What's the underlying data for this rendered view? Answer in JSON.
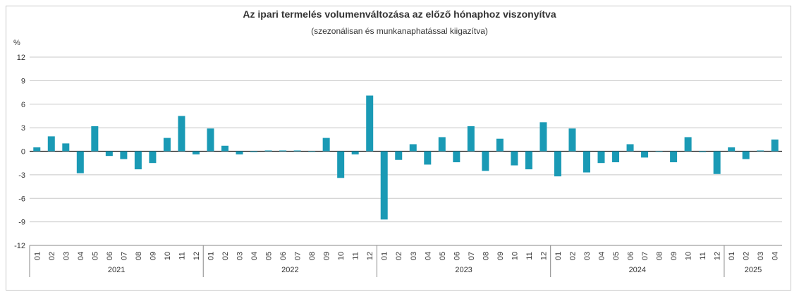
{
  "chart_data": {
    "type": "bar",
    "title": "Az ipari termelés volumenváltozása az előző hónaphoz viszonyítva",
    "subtitle": "(szezonálisan és munkanaphatással kiigazítva)",
    "ylabel": "%",
    "ylim": [
      -12,
      12
    ],
    "yticks": [
      12,
      9,
      6,
      3,
      0,
      -3,
      -6,
      -9,
      -12
    ],
    "grid": true,
    "bar_color": "#1a9ab5",
    "years": [
      {
        "label": "2021",
        "months": 12
      },
      {
        "label": "2022",
        "months": 12
      },
      {
        "label": "2023",
        "months": 12
      },
      {
        "label": "2024",
        "months": 12
      },
      {
        "label": "2025",
        "months": 4
      }
    ],
    "categories": [
      "01",
      "02",
      "03",
      "04",
      "05",
      "06",
      "07",
      "08",
      "09",
      "10",
      "11",
      "12",
      "01",
      "02",
      "03",
      "04",
      "05",
      "06",
      "07",
      "08",
      "09",
      "10",
      "11",
      "12",
      "01",
      "02",
      "03",
      "04",
      "05",
      "06",
      "07",
      "08",
      "09",
      "10",
      "11",
      "12",
      "01",
      "02",
      "03",
      "04",
      "05",
      "06",
      "07",
      "08",
      "09",
      "10",
      "11",
      "12",
      "01",
      "02",
      "03",
      "04"
    ],
    "values": [
      0.5,
      1.9,
      1.0,
      -2.8,
      3.2,
      -0.6,
      -1.0,
      -2.3,
      -1.5,
      1.7,
      4.5,
      -0.4,
      2.9,
      0.7,
      -0.4,
      -0.1,
      0.1,
      0.1,
      0.1,
      0.0,
      1.7,
      -3.4,
      -0.4,
      7.1,
      -8.7,
      -1.1,
      0.9,
      -1.7,
      1.8,
      -1.4,
      3.2,
      -2.5,
      1.6,
      -1.8,
      -2.3,
      3.7,
      -3.2,
      2.9,
      -2.7,
      -1.5,
      -1.4,
      0.9,
      -0.8,
      0.0,
      -1.4,
      1.8,
      -0.1,
      -2.9,
      0.5,
      -1.0,
      0.1,
      1.5
    ]
  }
}
